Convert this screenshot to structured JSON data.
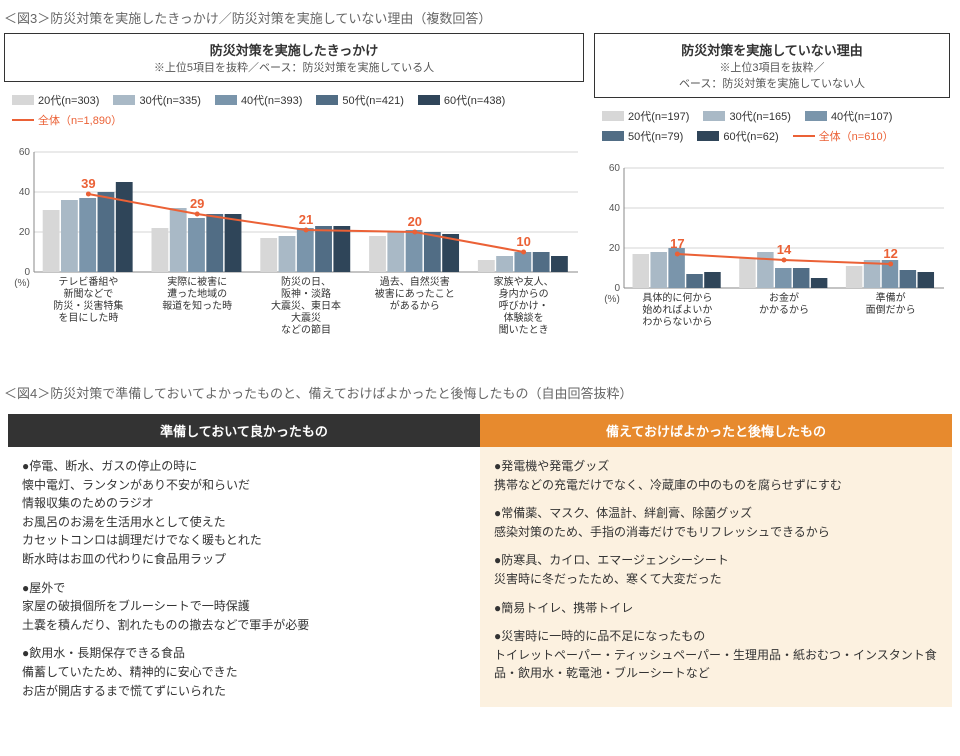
{
  "fig3": {
    "title": "＜図3＞防災対策を実施したきっかけ／防災対策を実施していない理由（複数回答）",
    "left": {
      "header_title": "防災対策を実施したきっかけ",
      "header_sub": "※上位5項目を抜粋／ベース：防災対策を実施している人",
      "legend": [
        {
          "label": "20代(n=303)",
          "color": "#d7d7d7"
        },
        {
          "label": "30代(n=335)",
          "color": "#a9b9c6"
        },
        {
          "label": "40代(n=393)",
          "color": "#7a95ab"
        },
        {
          "label": "50代(n=421)",
          "color": "#516d85"
        },
        {
          "label": "60代(n=438)",
          "color": "#2f4559"
        }
      ],
      "line_legend": {
        "label": "全体（n=1,890）",
        "color": "#eb6136"
      },
      "ylim": [
        0,
        60
      ],
      "ytick_step": 20,
      "categories": [
        "テレビ番組や\n新聞などで\n防災・災害特集\nを目にした時",
        "実際に被害に\n遭った地域の\n報道を知った時",
        "防災の日、\n阪神・淡路\n大震災、東日本\n大震災\nなどの節目",
        "過去、自然災害\n被害にあったこと\nがあるから",
        "家族や友人、\n身内からの\n呼びかけ・\n体験談を\n聞いたとき"
      ],
      "series": [
        [
          31,
          22,
          17,
          18,
          6
        ],
        [
          36,
          32,
          18,
          20,
          8
        ],
        [
          37,
          27,
          22,
          21,
          10
        ],
        [
          40,
          29,
          23,
          20,
          10
        ],
        [
          45,
          29,
          23,
          19,
          8
        ]
      ],
      "line_values": [
        39,
        29,
        21,
        20,
        10
      ]
    },
    "right": {
      "header_title": "防災対策を実施していない理由",
      "header_sub": "※上位3項目を抜粋／\nベース：防災対策を実施していない人",
      "legend": [
        {
          "label": "20代(n=197)",
          "color": "#d7d7d7"
        },
        {
          "label": "30代(n=165)",
          "color": "#a9b9c6"
        },
        {
          "label": "40代(n=107)",
          "color": "#7a95ab"
        },
        {
          "label": "50代(n=79)",
          "color": "#516d85"
        },
        {
          "label": "60代(n=62)",
          "color": "#2f4559"
        }
      ],
      "line_legend": {
        "label": "全体（n=610）",
        "color": "#eb6136"
      },
      "ylim": [
        0,
        60
      ],
      "ytick_step": 20,
      "categories": [
        "具体的に何から\n始めればよいか\nわからないから",
        "お金が\nかかるから",
        "準備が\n面倒だから"
      ],
      "series": [
        [
          17,
          15,
          11
        ],
        [
          18,
          18,
          14
        ],
        [
          20,
          10,
          14
        ],
        [
          7,
          10,
          9
        ],
        [
          8,
          5,
          8
        ]
      ],
      "line_values": [
        17,
        14,
        12
      ]
    },
    "grid_color": "#d5d5d5",
    "axis_color": "#888"
  },
  "fig4": {
    "title": "＜図4＞防災対策で準備しておいてよかったものと、備えておけばよかったと後悔したもの（自由回答抜粋）",
    "left": {
      "header": "準備しておいて良かったもの",
      "header_bg": "#333333",
      "body_bg": "#ffffff",
      "groups": [
        {
          "lead": "●停電、断水、ガスの停止の時に",
          "lines": [
            "懐中電灯、ランタンがあり不安が和らいだ",
            "情報収集のためのラジオ",
            "お風呂のお湯を生活用水として使えた",
            "カセットコンロは調理だけでなく暖もとれた",
            "断水時はお皿の代わりに食品用ラップ"
          ]
        },
        {
          "lead": "●屋外で",
          "lines": [
            "家屋の破損個所をブルーシートで一時保護",
            "土嚢を積んだり、割れたものの撤去などで軍手が必要"
          ]
        },
        {
          "lead": "●飲用水・長期保存できる食品",
          "lines": [
            "備蓄していたため、精神的に安心できた",
            "お店が開店するまで慌てずにいられた"
          ]
        }
      ]
    },
    "right": {
      "header": "備えておけばよかったと後悔したもの",
      "header_bg": "#e78a2e",
      "body_bg": "#fcf1e0",
      "groups": [
        {
          "lead": "●発電機や発電グッズ",
          "lines": [
            "携帯などの充電だけでなく、冷蔵庫の中のものを腐らせずにすむ"
          ]
        },
        {
          "lead": "●常備薬、マスク、体温計、絆創膏、除菌グッズ",
          "lines": [
            "感染対策のため、手指の消毒だけでもリフレッシュできるから"
          ]
        },
        {
          "lead": "●防寒具、カイロ、エマージェンシーシート",
          "lines": [
            "災害時に冬だったため、寒くて大変だった"
          ]
        },
        {
          "lead": "●簡易トイレ、携帯トイレ",
          "lines": []
        },
        {
          "lead": "●災害時に一時的に品不足になったもの",
          "lines": [
            "トイレットペーパー・ティッシュペーパー・生理用品・紙おむつ・インスタント食品・飲用水・乾電池・ブルーシートなど"
          ]
        }
      ]
    }
  },
  "pct_label": "(%)"
}
